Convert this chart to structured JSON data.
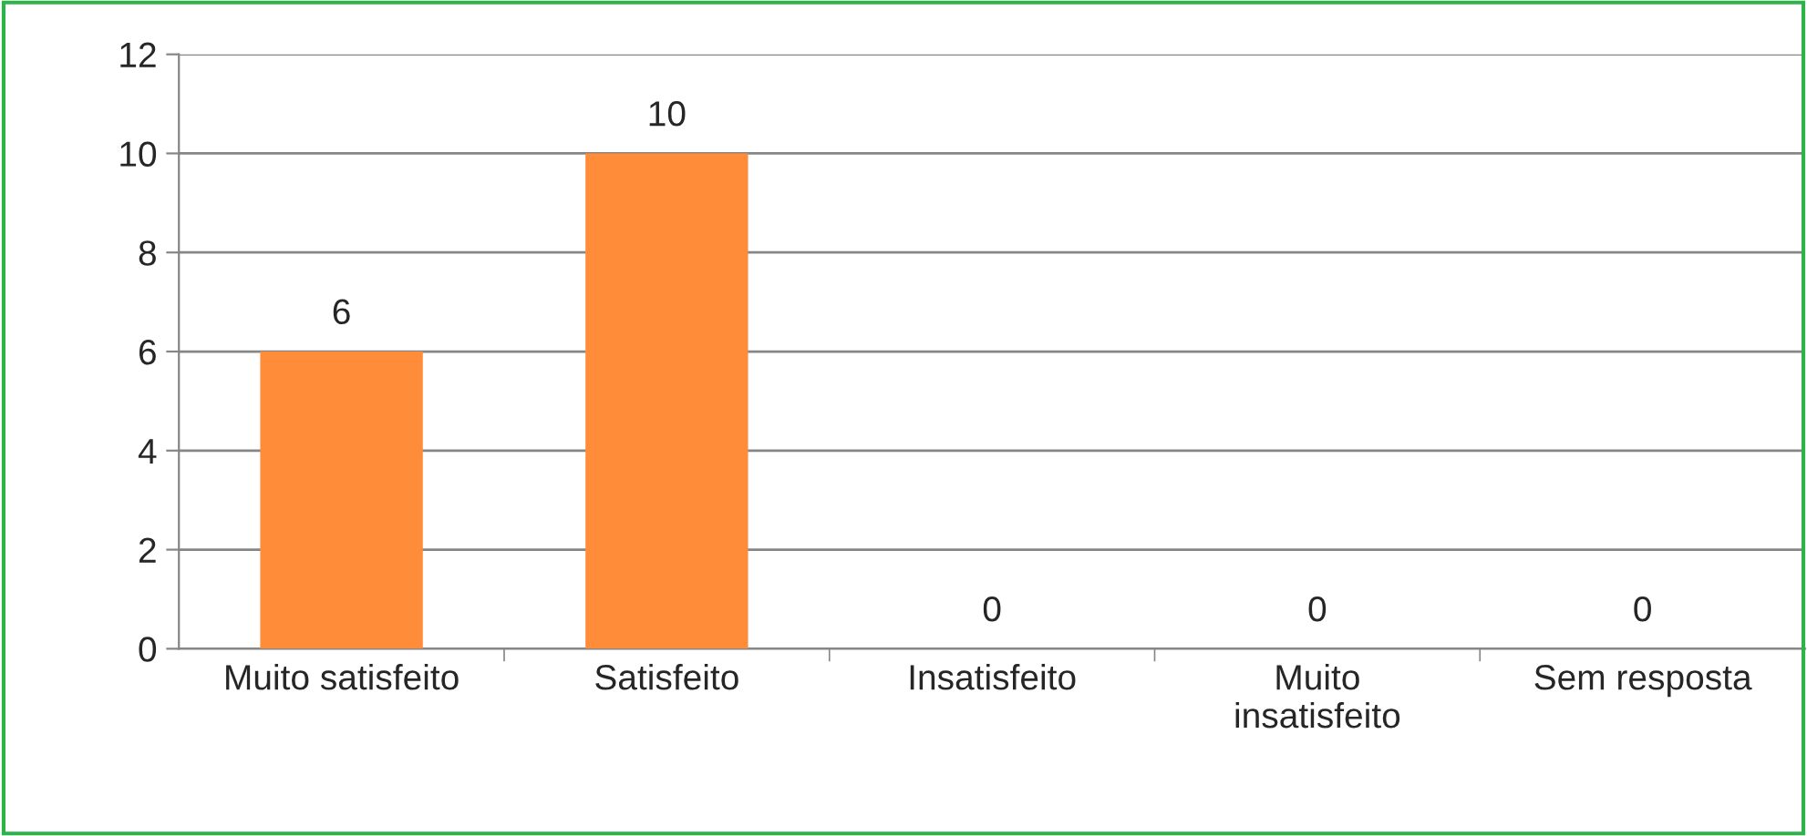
{
  "chart_data": {
    "type": "bar",
    "categories": [
      "Muito satisfeito",
      "Satisfeito",
      "Insatisfeito",
      "Muito\ninsatisfeito",
      "Sem resposta"
    ],
    "values": [
      6,
      10,
      0,
      0,
      0
    ],
    "color": "#ff8c38",
    "ylim": [
      0,
      12
    ],
    "yticks": [
      0,
      2,
      4,
      6,
      8,
      10,
      12
    ],
    "grid": "y",
    "data_labels": true
  }
}
